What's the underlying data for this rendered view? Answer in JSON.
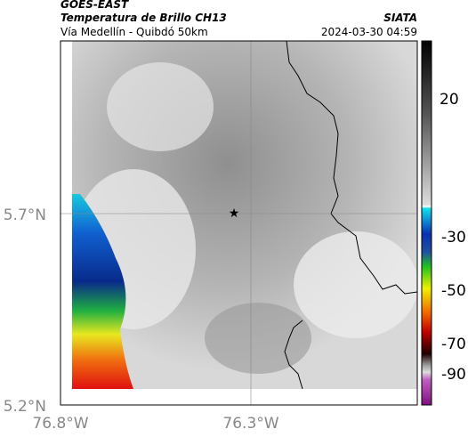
{
  "header": {
    "source": "GOES-EAST",
    "title": "Temperatura de Brillo CH13",
    "agency": "SIATA",
    "region": "Vía Medellín - Quibdó 50km",
    "datetime": "2024-03-30 04:59"
  },
  "map": {
    "x_labels": [
      "76.8°W",
      "76.3°W"
    ],
    "y_labels": [
      "5.7°N",
      "5.2°N"
    ]
  },
  "colorbar": {
    "labels": [
      "20",
      "-30",
      "-50",
      "-70",
      "-90"
    ]
  }
}
